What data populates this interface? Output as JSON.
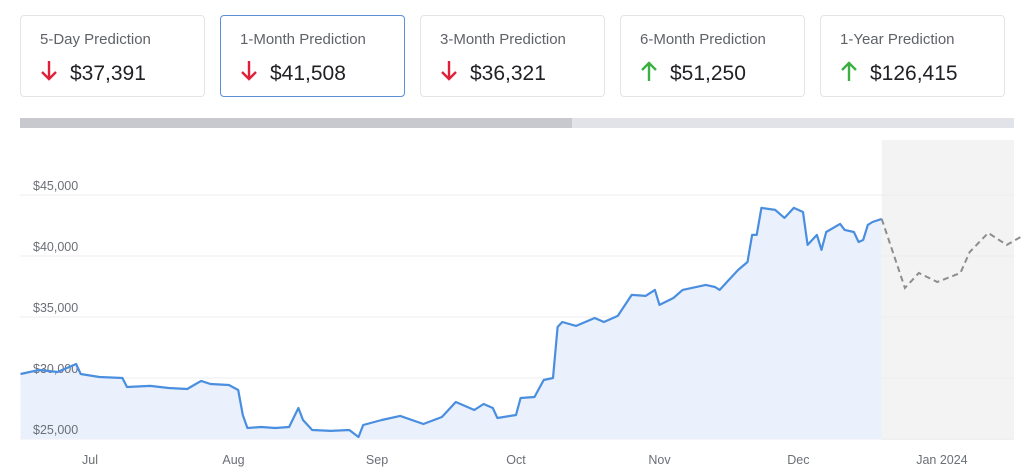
{
  "cards": [
    {
      "label": "5-Day Prediction",
      "value": "$37,391",
      "direction": "down",
      "selected": false
    },
    {
      "label": "1-Month Prediction",
      "value": "$41,508",
      "direction": "down",
      "selected": true
    },
    {
      "label": "3-Month Prediction",
      "value": "$36,321",
      "direction": "down",
      "selected": false
    },
    {
      "label": "6-Month Prediction",
      "value": "$51,250",
      "direction": "up",
      "selected": false
    },
    {
      "label": "1-Year Prediction",
      "value": "$126,415",
      "direction": "up",
      "selected": false
    }
  ],
  "colors": {
    "down": "#e0203a",
    "up": "#3cb043",
    "history": "#4a8ee0",
    "history_fill": "#eaf1fc",
    "forecast": "#8d8d8d",
    "forecast_fill": "#f3f3f3",
    "selected_border": "#5b8fd6"
  },
  "scrollbar": {
    "visible_fraction": 0.555
  },
  "chart_data": {
    "type": "line",
    "y_tick_labels": [
      "$45,000",
      "$40,000",
      "$35,000",
      "$30,000",
      "$25,000"
    ],
    "y_ticks": [
      45000,
      40000,
      35000,
      30000,
      25000
    ],
    "ylim": [
      25000,
      46000
    ],
    "x_tick_labels": [
      "Jul",
      "Aug",
      "Sep",
      "Oct",
      "Nov",
      "Dec",
      "Jan 2024"
    ],
    "x_ticks": [
      "2023-07-01",
      "2023-08-01",
      "2023-09-01",
      "2023-10-01",
      "2023-11-01",
      "2023-12-01",
      "2024-01-01"
    ],
    "grid": true,
    "series": [
      {
        "style": "solid-area",
        "points": [
          [
            "2023-06-16",
            30330
          ],
          [
            "2023-06-20",
            30660
          ],
          [
            "2023-06-24",
            30490
          ],
          [
            "2023-06-28",
            31150
          ],
          [
            "2023-06-29",
            30330
          ],
          [
            "2023-07-03",
            30080
          ],
          [
            "2023-07-08",
            30000
          ],
          [
            "2023-07-09",
            29260
          ],
          [
            "2023-07-14",
            29350
          ],
          [
            "2023-07-18",
            29180
          ],
          [
            "2023-07-22",
            29100
          ],
          [
            "2023-07-25",
            29760
          ],
          [
            "2023-07-27",
            29510
          ],
          [
            "2023-07-31",
            29430
          ],
          [
            "2023-08-02",
            29020
          ],
          [
            "2023-08-03",
            26970
          ],
          [
            "2023-08-04",
            25900
          ],
          [
            "2023-08-07",
            25980
          ],
          [
            "2023-08-10",
            25900
          ],
          [
            "2023-08-13",
            25980
          ],
          [
            "2023-08-15",
            27540
          ],
          [
            "2023-08-16",
            26560
          ],
          [
            "2023-08-18",
            25740
          ],
          [
            "2023-08-22",
            25660
          ],
          [
            "2023-08-26",
            25740
          ],
          [
            "2023-08-28",
            25160
          ],
          [
            "2023-08-29",
            26150
          ],
          [
            "2023-09-02",
            26560
          ],
          [
            "2023-09-06",
            26890
          ],
          [
            "2023-09-11",
            26230
          ],
          [
            "2023-09-15",
            26800
          ],
          [
            "2023-09-18",
            28030
          ],
          [
            "2023-09-22",
            27380
          ],
          [
            "2023-09-24",
            27870
          ],
          [
            "2023-09-26",
            27540
          ],
          [
            "2023-09-27",
            26720
          ],
          [
            "2023-10-01",
            26970
          ],
          [
            "2023-10-02",
            28360
          ],
          [
            "2023-10-05",
            28440
          ],
          [
            "2023-10-07",
            29840
          ],
          [
            "2023-10-09",
            30000
          ],
          [
            "2023-10-10",
            34180
          ],
          [
            "2023-10-11",
            34590
          ],
          [
            "2023-10-14",
            34270
          ],
          [
            "2023-10-18",
            34920
          ],
          [
            "2023-10-20",
            34590
          ],
          [
            "2023-10-23",
            35090
          ],
          [
            "2023-10-26",
            36810
          ],
          [
            "2023-10-29",
            36730
          ],
          [
            "2023-10-31",
            37220
          ],
          [
            "2023-11-01",
            35990
          ],
          [
            "2023-11-04",
            36560
          ],
          [
            "2023-11-06",
            37220
          ],
          [
            "2023-11-11",
            37630
          ],
          [
            "2023-11-13",
            37460
          ],
          [
            "2023-11-14",
            37220
          ],
          [
            "2023-11-16",
            38040
          ],
          [
            "2023-11-18",
            38860
          ],
          [
            "2023-11-20",
            39510
          ],
          [
            "2023-11-21",
            41730
          ],
          [
            "2023-11-22",
            41730
          ],
          [
            "2023-11-23",
            43940
          ],
          [
            "2023-11-26",
            43780
          ],
          [
            "2023-11-28",
            43120
          ],
          [
            "2023-11-30",
            43940
          ],
          [
            "2023-12-02",
            43610
          ],
          [
            "2023-12-03",
            40910
          ],
          [
            "2023-12-05",
            41730
          ],
          [
            "2023-12-06",
            40500
          ],
          [
            "2023-12-07",
            41970
          ],
          [
            "2023-12-10",
            42630
          ],
          [
            "2023-12-11",
            42140
          ],
          [
            "2023-12-13",
            41970
          ],
          [
            "2023-12-14",
            41150
          ],
          [
            "2023-12-15",
            41320
          ],
          [
            "2023-12-16",
            42550
          ],
          [
            "2023-12-17",
            42790
          ],
          [
            "2023-12-19",
            43040
          ]
        ]
      },
      {
        "style": "dashed-forecast",
        "points": [
          [
            "2023-12-19",
            43040
          ],
          [
            "2023-12-24",
            37380
          ],
          [
            "2023-12-27",
            38610
          ],
          [
            "2023-12-31",
            37870
          ],
          [
            "2024-01-05",
            38610
          ],
          [
            "2024-01-07",
            40330
          ],
          [
            "2024-01-11",
            41890
          ],
          [
            "2024-01-15",
            40910
          ],
          [
            "2024-01-18",
            41560
          ]
        ]
      }
    ]
  }
}
